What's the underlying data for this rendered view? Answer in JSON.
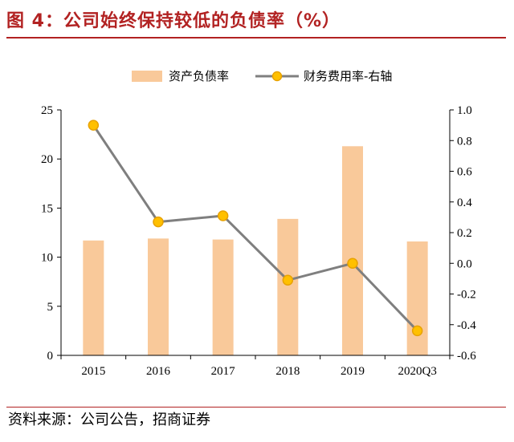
{
  "title": "图 4：公司始终保持较低的负债率（%）",
  "source": "资料来源：公司公告，招商证券",
  "colors": {
    "title": "#b22222",
    "bar": "#f9c99a",
    "line": "#7f7f7f",
    "marker_fill": "#ffc000",
    "marker_stroke": "#e8a200"
  },
  "chart_data": {
    "type": "bar+line",
    "categories": [
      "2015",
      "2016",
      "2017",
      "2018",
      "2019",
      "2020Q3"
    ],
    "series": [
      {
        "name": "资产负债率",
        "type": "bar",
        "axis": "left",
        "values": [
          11.7,
          11.9,
          11.8,
          13.9,
          21.3,
          11.6
        ]
      },
      {
        "name": "财务费用率-右轴",
        "type": "line",
        "axis": "right",
        "values": [
          0.9,
          0.27,
          0.31,
          -0.11,
          0.0,
          -0.44
        ]
      }
    ],
    "y_left": {
      "ylim": [
        0,
        25
      ],
      "ticks": [
        "0",
        "5",
        "10",
        "15",
        "20",
        "25"
      ]
    },
    "y_right": {
      "ylim": [
        -0.6,
        1.0
      ],
      "ticks": [
        "-0.6",
        "-0.4",
        "-0.2",
        "0.0",
        "0.2",
        "0.4",
        "0.6",
        "0.8",
        "1.0"
      ]
    },
    "legend": "top-center",
    "grid": false
  }
}
